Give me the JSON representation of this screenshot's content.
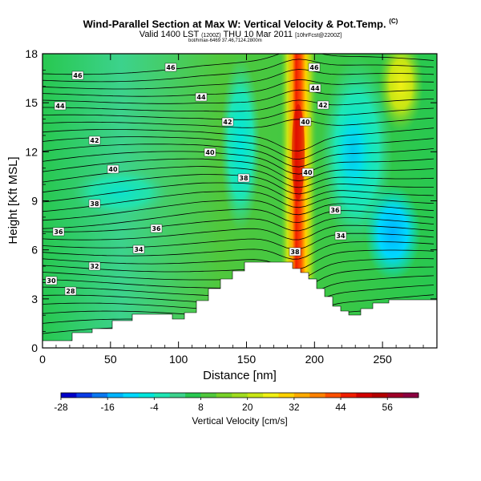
{
  "title": {
    "main": "Wind-Parallel Section at Max W: Vertical Velocity & Pot.Temp.",
    "main_suffix": "(C)",
    "line2_a": "Valid 1400 LST",
    "line2_small1": "(1200Z)",
    "line2_b": "THU 10 Mar 2011",
    "line2_small2": "[10hrFcst@2200Z]",
    "line3": "bot/hmax-6469 37.46,7124.2800m"
  },
  "chart_data": {
    "type": "heatmap",
    "xlabel": "Distance [nm]",
    "ylabel": "Height [Kft MSL]",
    "xlim": [
      0,
      290
    ],
    "ylim": [
      0,
      18
    ],
    "x_ticks": [
      0,
      50,
      100,
      150,
      200,
      250
    ],
    "y_ticks": [
      0,
      3,
      6,
      9,
      12,
      15,
      18
    ],
    "colorbar": {
      "label": "Vertical Velocity [cm/s]",
      "tick_labels": [
        "-28",
        "-16",
        "-4",
        "8",
        "20",
        "32",
        "44",
        "56"
      ],
      "tick_values": [
        -28,
        -16,
        -4,
        8,
        20,
        32,
        44,
        56
      ],
      "range": [
        -28,
        64
      ],
      "colors": [
        "#0000c8",
        "#0a3ce6",
        "#0a78f0",
        "#00b4ff",
        "#00d8ff",
        "#00e6dc",
        "#1ee6b4",
        "#3cd28c",
        "#28c850",
        "#50c83c",
        "#78d228",
        "#a0dc1e",
        "#c8e614",
        "#f0f014",
        "#ffd200",
        "#ffaa00",
        "#ff8200",
        "#ff5000",
        "#f01e00",
        "#d20000",
        "#b40000",
        "#a00028",
        "#8c0040"
      ]
    },
    "potential_temperature_labels": [
      "46",
      "46",
      "46",
      "44",
      "44",
      "44",
      "42",
      "42",
      "42",
      "40",
      "40",
      "40",
      "40",
      "38",
      "38",
      "38",
      "36",
      "36",
      "36",
      "34",
      "34",
      "32",
      "30",
      "28"
    ],
    "peak_updraft": {
      "x": 188,
      "label": "Max W"
    }
  }
}
